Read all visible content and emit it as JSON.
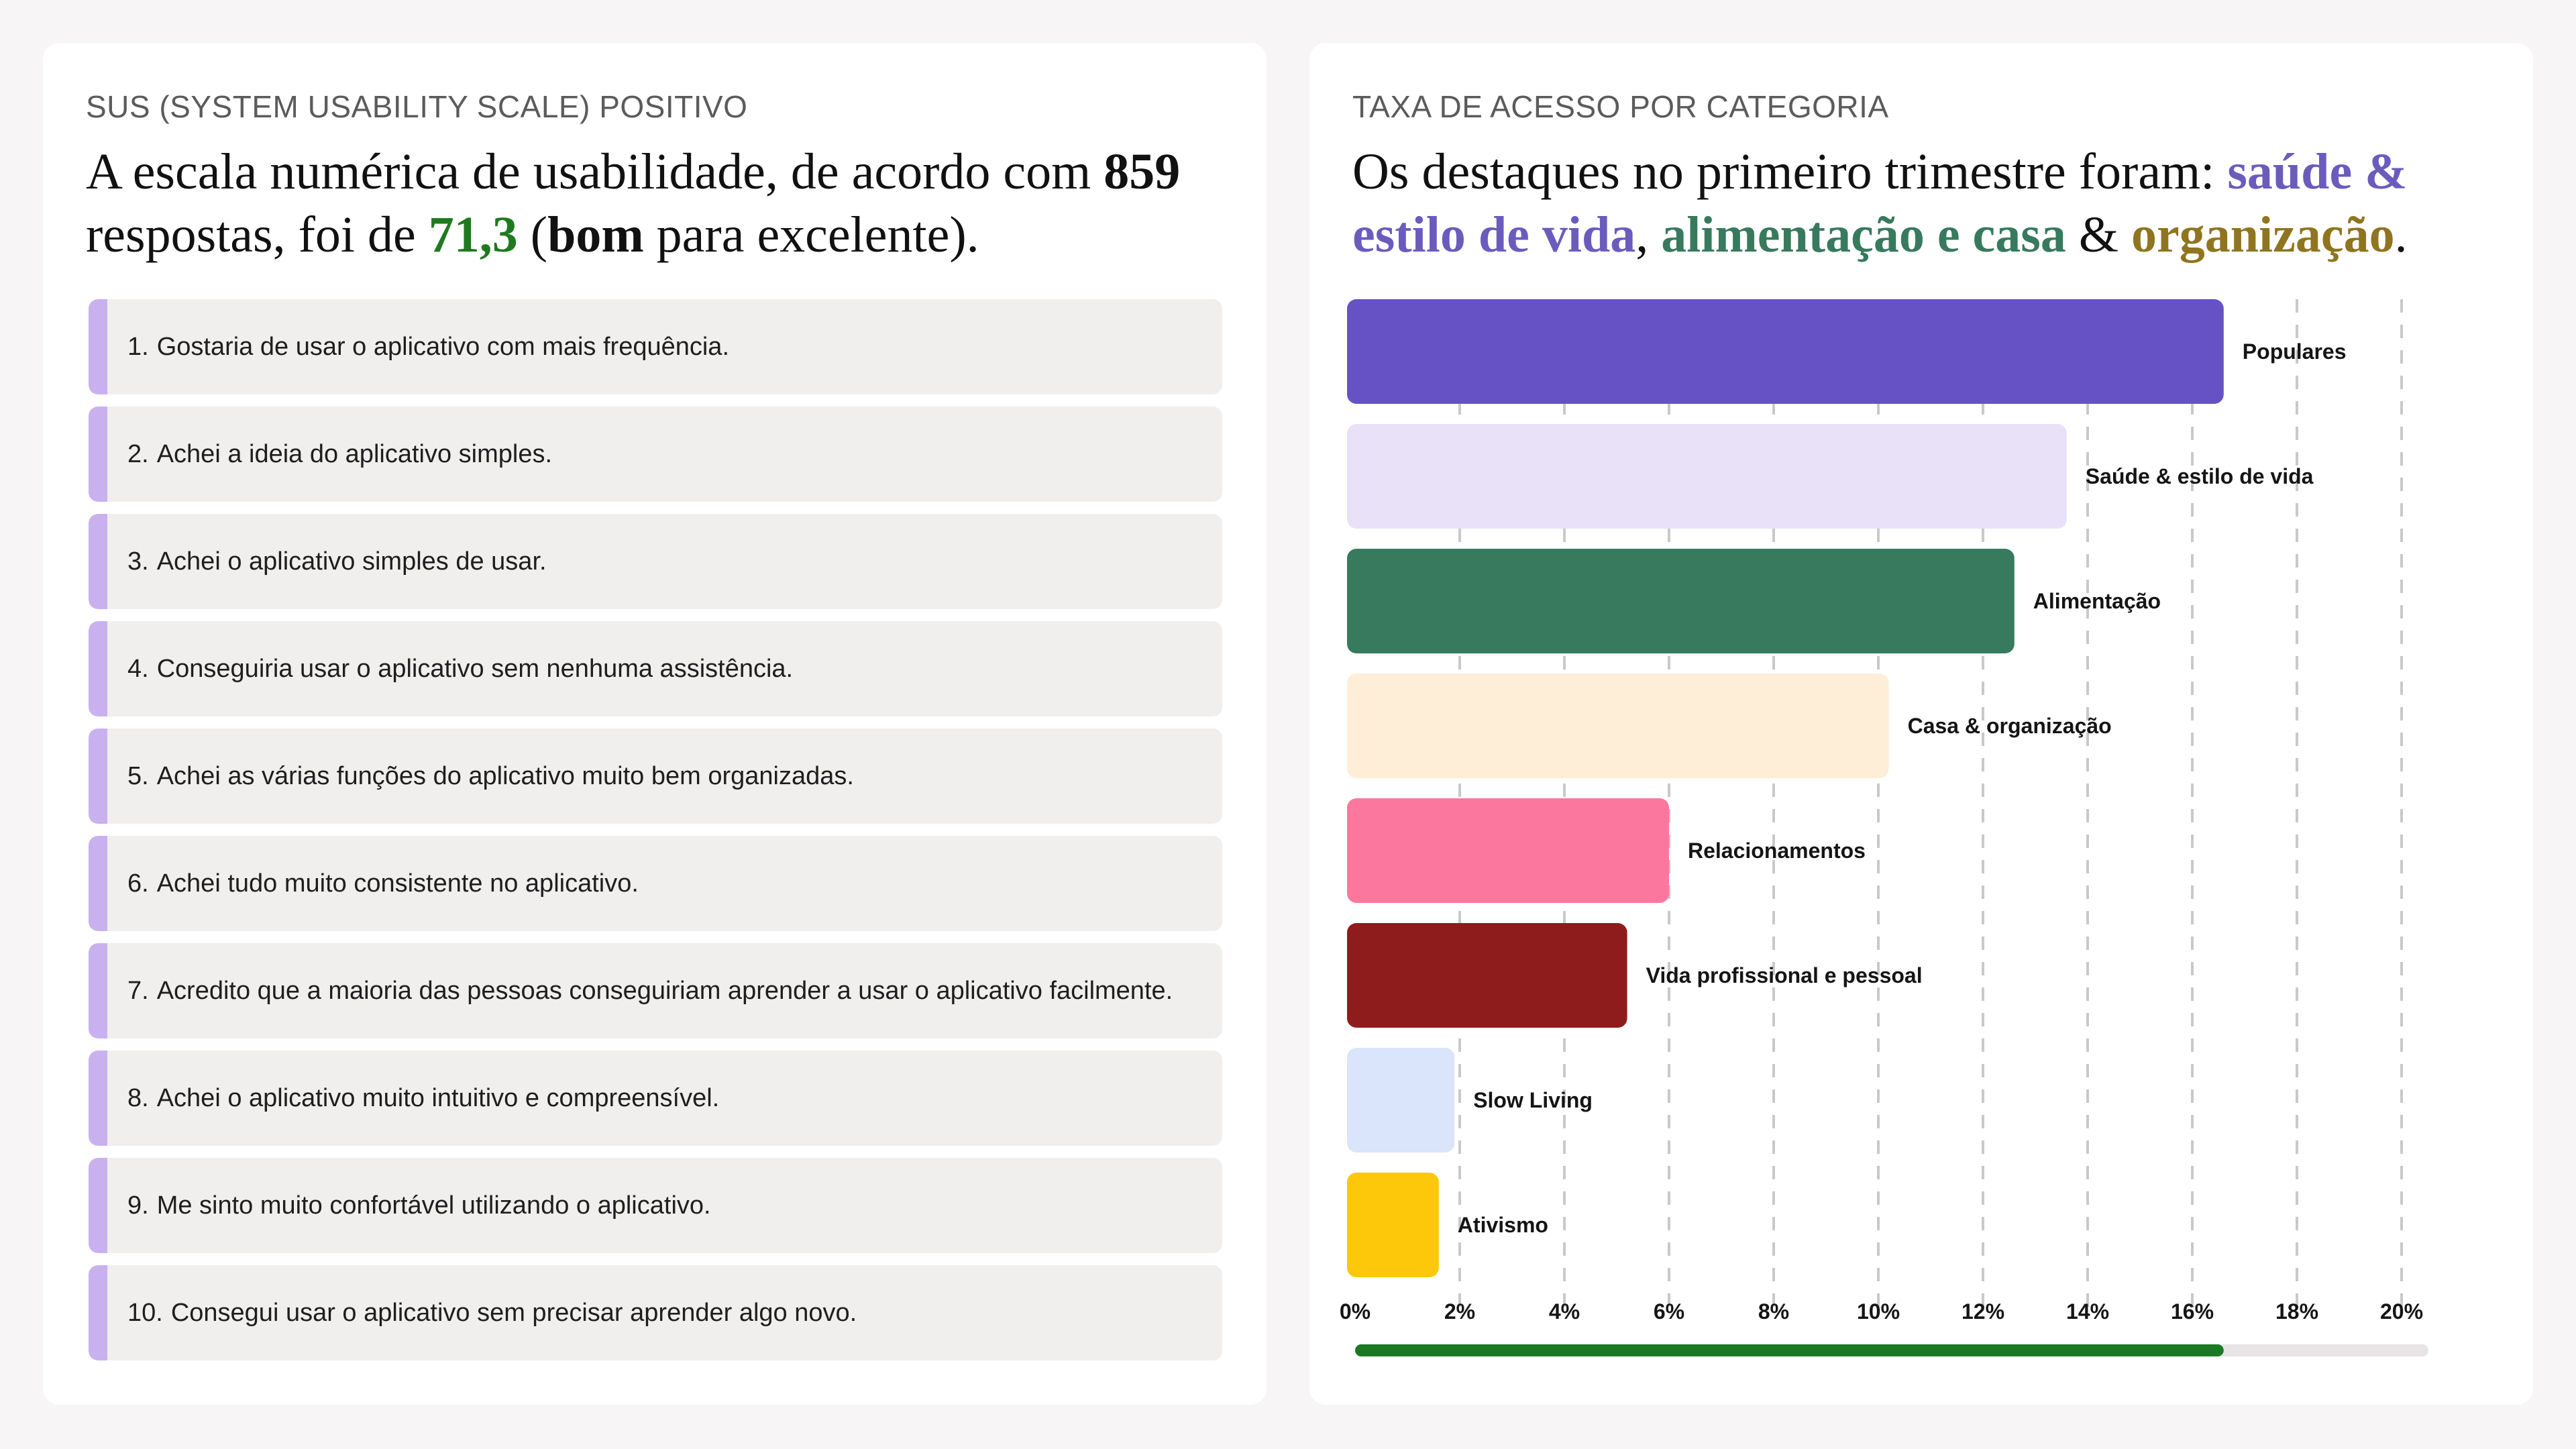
{
  "left": {
    "eyebrow": "SUS (SYSTEM USABILITY SCALE) POSITIVO",
    "headline": {
      "part1": "A escala numérica de usabilidade, de acordo com ",
      "responses": "859",
      "part2": " respostas, foi de ",
      "score": "71,3",
      "part3": " (",
      "rating": "bom",
      "part4": " para excelente)."
    },
    "questions": [
      {
        "num": "1.",
        "text": "Gostaria de usar o aplicativo com mais frequência."
      },
      {
        "num": "2.",
        "text": "Achei a ideia do aplicativo simples."
      },
      {
        "num": "3.",
        "text": "Achei o aplicativo simples de usar."
      },
      {
        "num": "4.",
        "text": "Conseguiria usar o aplicativo sem nenhuma assistência."
      },
      {
        "num": "5.",
        "text": "Achei as várias funções do aplicativo muito bem organizadas."
      },
      {
        "num": "6.",
        "text": "Achei tudo muito consistente no aplicativo."
      },
      {
        "num": "7.",
        "text": "Acredito que a maioria das pessoas conseguiriam aprender a usar o aplicativo facilmente."
      },
      {
        "num": "8.",
        "text": "Achei o aplicativo muito intuitivo e compreensível."
      },
      {
        "num": "9.",
        "text": "Me sinto muito confortável utilizando o aplicativo."
      },
      {
        "num": "10.",
        "text": "Consegui usar o aplicativo sem precisar aprender algo novo."
      }
    ]
  },
  "right": {
    "eyebrow": "TAXA DE ACESSO POR CATEGORIA",
    "headline": {
      "part1": "Os destaques no primeiro trimestre foram: ",
      "h1": "saúde & estilo de vida",
      "sep1": ", ",
      "h2": "alimentação e casa",
      "sep2": " & ",
      "h3": "organização",
      "end": "."
    }
  },
  "colors": {
    "score_green": "#1f7a1f",
    "saude": "#6b5bbd",
    "alimentacao": "#377a5e",
    "organizacao": "#8f7520",
    "progress_fill": "#1a7a24",
    "progress_track": "#e6e4e4"
  },
  "chart_data": {
    "type": "bar",
    "orientation": "horizontal",
    "title": "TAXA DE ACESSO POR CATEGORIA",
    "unit": "%",
    "categories": [
      "Populares",
      "Saúde & estilo de vida",
      "Alimentação",
      "Casa & organização",
      "Relacionamentos",
      "Vida profissional e pessoal",
      "Slow Living",
      "Ativismo"
    ],
    "values": [
      16.6,
      13.6,
      12.6,
      10.2,
      6.0,
      5.2,
      1.9,
      1.6
    ],
    "colors": [
      "#6652c4",
      "#e9e1f8",
      "#377a5e",
      "#ffeed7",
      "#fc779d",
      "#8f1c1c",
      "#dae4fa",
      "#fdc80a"
    ],
    "xlim": [
      0,
      20
    ],
    "xticks": [
      0,
      2,
      4,
      6,
      8,
      10,
      12,
      14,
      16,
      18,
      20
    ],
    "tick_labels": [
      "0%",
      "2%",
      "4%",
      "6%",
      "8%",
      "10%",
      "12%",
      "14%",
      "16%",
      "18%",
      "20%"
    ],
    "grid": true,
    "progress_value": 16.6
  }
}
